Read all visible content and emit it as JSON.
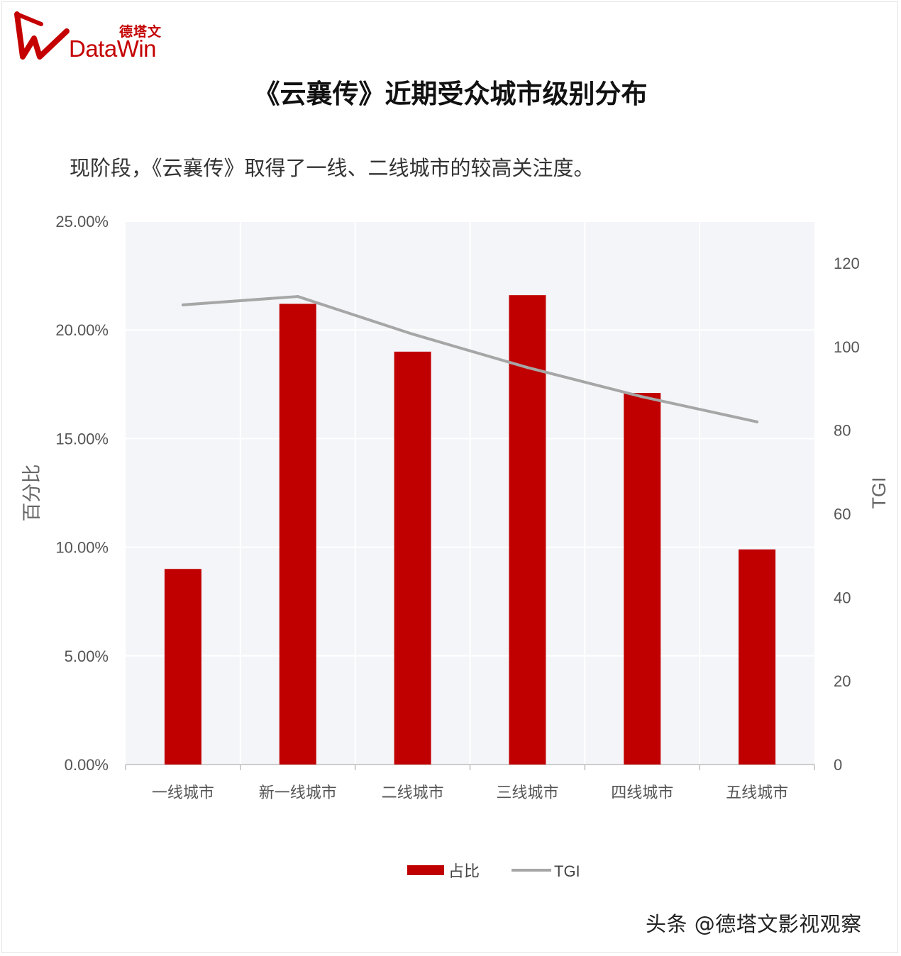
{
  "header": {
    "logo_cn": "德塔文",
    "logo_en": "DataWin",
    "title": "《云襄传》近期受众城市级别分布",
    "subtitle": "现阶段，《云襄传》取得了一线、二线城市的较高关注度。"
  },
  "footer": {
    "watermark": "头条 @德塔文影视观察"
  },
  "colors": {
    "bar": "#c00000",
    "line": "#a6a6a6",
    "plot_bg": "#f4f5f9",
    "grid": "#ffffff",
    "logo": "#c40000"
  },
  "chart_data": {
    "type": "bar",
    "categories": [
      "一线城市",
      "新一线城市",
      "二线城市",
      "三线城市",
      "四线城市",
      "五线城市"
    ],
    "series": [
      {
        "name": "占比",
        "type": "bar",
        "axis": "left",
        "values": [
          9.0,
          21.2,
          19.0,
          21.6,
          17.1,
          9.9
        ]
      },
      {
        "name": "TGI",
        "type": "line",
        "axis": "right",
        "values": [
          110,
          112,
          103,
          95,
          88,
          82
        ]
      }
    ],
    "ylabel": "百分比",
    "y2label": "TGI",
    "ylim": [
      0,
      25
    ],
    "y2lim": [
      0,
      130
    ],
    "yticks": [
      "0.00%",
      "5.00%",
      "10.00%",
      "15.00%",
      "20.00%",
      "25.00%"
    ],
    "y2ticks": [
      "0",
      "20",
      "40",
      "60",
      "80",
      "100",
      "120"
    ],
    "grid": true,
    "legend": "bottom"
  }
}
